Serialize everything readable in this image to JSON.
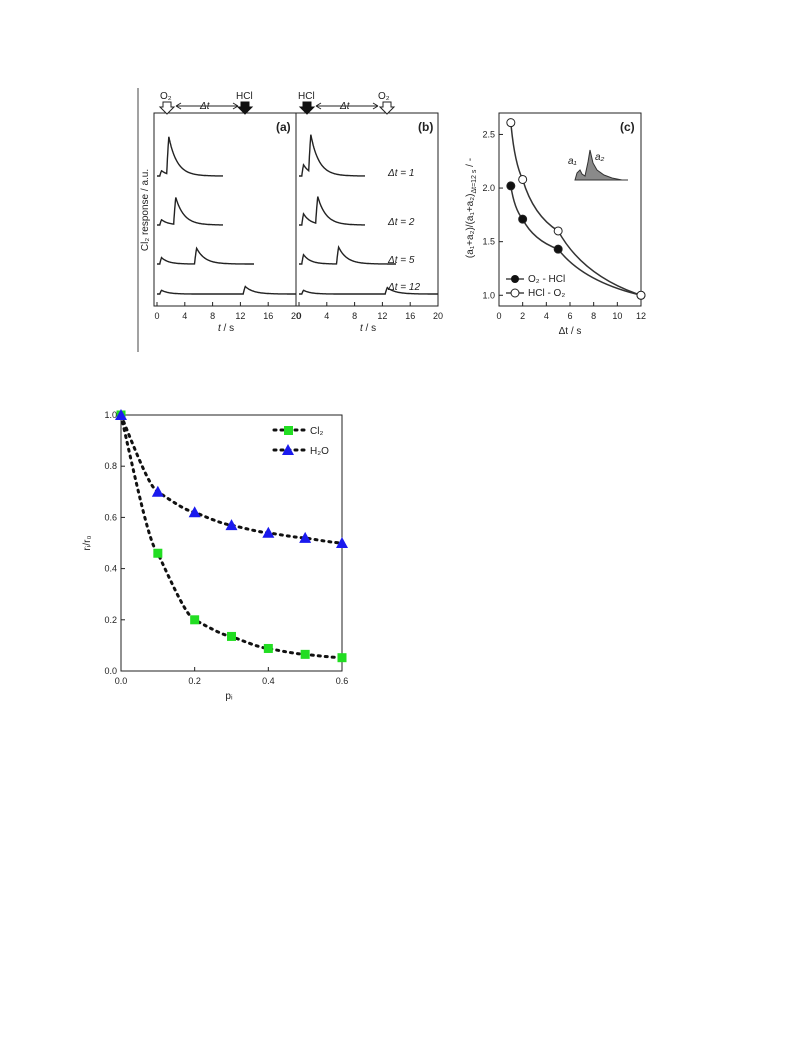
{
  "chart_data": [
    {
      "id": "a",
      "type": "line",
      "panel_label": "(a)",
      "ylabel": "Cl₂ response / a.u.",
      "xlabel_italic": "t",
      "xlabel_unit": " / s",
      "xlim": [
        0,
        20
      ],
      "xticks": [
        0,
        4,
        8,
        12,
        16,
        20
      ],
      "pulse_top_labels": [
        "O₂",
        "Δt",
        "HCl"
      ],
      "pulse_arrows": [
        {
          "label": "O₂",
          "t": 0,
          "style": "open"
        },
        {
          "label": "HCl",
          "t": 11,
          "style": "filled"
        }
      ],
      "dt_labels": [
        "Δt = 1",
        "Δt = 2",
        "Δt = 5",
        "Δt = 12"
      ],
      "traces": [
        {
          "dt": 1,
          "small_peak": 0.14,
          "big_peak": 1.0,
          "t_end": 9.5
        },
        {
          "dt": 2,
          "small_peak": 0.14,
          "big_peak": 0.72,
          "t_end": 9.5
        },
        {
          "dt": 5,
          "small_peak": 0.17,
          "big_peak": 0.42,
          "t_end": 14
        },
        {
          "dt": 12,
          "small_peak": 0.1,
          "big_peak": 0.2,
          "t_end": 20
        }
      ]
    },
    {
      "id": "b",
      "type": "line",
      "panel_label": "(b)",
      "xlabel_italic": "t",
      "xlabel_unit": " / s",
      "xlim": [
        0,
        20
      ],
      "xticks": [
        0,
        4,
        8,
        12,
        16,
        20
      ],
      "pulse_top_labels": [
        "HCl",
        "Δt",
        "O₂"
      ],
      "pulse_arrows": [
        {
          "label": "HCl",
          "t": 0,
          "style": "filled"
        },
        {
          "label": "O₂",
          "t": 11,
          "style": "open"
        }
      ],
      "traces": [
        {
          "dt": 1,
          "small_peak": 0.3,
          "big_peak": 1.0,
          "t_end": 9.5
        },
        {
          "dt": 2,
          "small_peak": 0.3,
          "big_peak": 0.72,
          "t_end": 9.5
        },
        {
          "dt": 5,
          "small_peak": 0.25,
          "big_peak": 0.45,
          "t_end": 14
        },
        {
          "dt": 12,
          "small_peak": 0.1,
          "big_peak": 0.17,
          "t_end": 20
        }
      ]
    },
    {
      "id": "c",
      "type": "scatter",
      "panel_label": "(c)",
      "ylabel_main": "(a₁+a₂)/(a₁+a₂)",
      "ylabel_sub": "Δt=12 s",
      "ylabel_tail": " / -",
      "xlabel": "Δt / s",
      "xlim": [
        0,
        12
      ],
      "ylim": [
        0.9,
        2.7
      ],
      "xticks": [
        0,
        2,
        4,
        6,
        8,
        10,
        12
      ],
      "yticks": [
        1.0,
        1.5,
        2.0,
        2.5
      ],
      "inset_labels": [
        "a₁",
        "a₂"
      ],
      "series": [
        {
          "name": "O₂ - HCl",
          "marker": "filled-circle",
          "x": [
            1,
            2,
            5,
            12
          ],
          "y": [
            2.02,
            1.71,
            1.43,
            1.0
          ]
        },
        {
          "name": "HCl - O₂",
          "marker": "open-circle",
          "x": [
            1,
            2,
            5,
            12
          ],
          "y": [
            2.61,
            2.08,
            1.6,
            1.0
          ]
        }
      ]
    },
    {
      "id": "d",
      "type": "scatter",
      "ylabel": "rᵢ/r₀",
      "xlabel": "pᵢ",
      "xlim": [
        0,
        0.6
      ],
      "ylim": [
        0,
        1.0
      ],
      "xticks": [
        0.0,
        0.2,
        0.4,
        0.6
      ],
      "yticks": [
        0.0,
        0.2,
        0.4,
        0.6,
        0.8,
        1.0
      ],
      "series": [
        {
          "name": "Cl₂",
          "marker": "square",
          "color": "#22dd22",
          "x": [
            0,
            0.1,
            0.2,
            0.3,
            0.4,
            0.5,
            0.6
          ],
          "y": [
            1.0,
            0.46,
            0.2,
            0.135,
            0.088,
            0.065,
            0.052
          ]
        },
        {
          "name": "H₂O",
          "marker": "triangle",
          "color": "#1a1aee",
          "x": [
            0,
            0.1,
            0.2,
            0.3,
            0.4,
            0.5,
            0.6
          ],
          "y": [
            1.0,
            0.7,
            0.62,
            0.57,
            0.54,
            0.52,
            0.5
          ]
        }
      ]
    }
  ]
}
